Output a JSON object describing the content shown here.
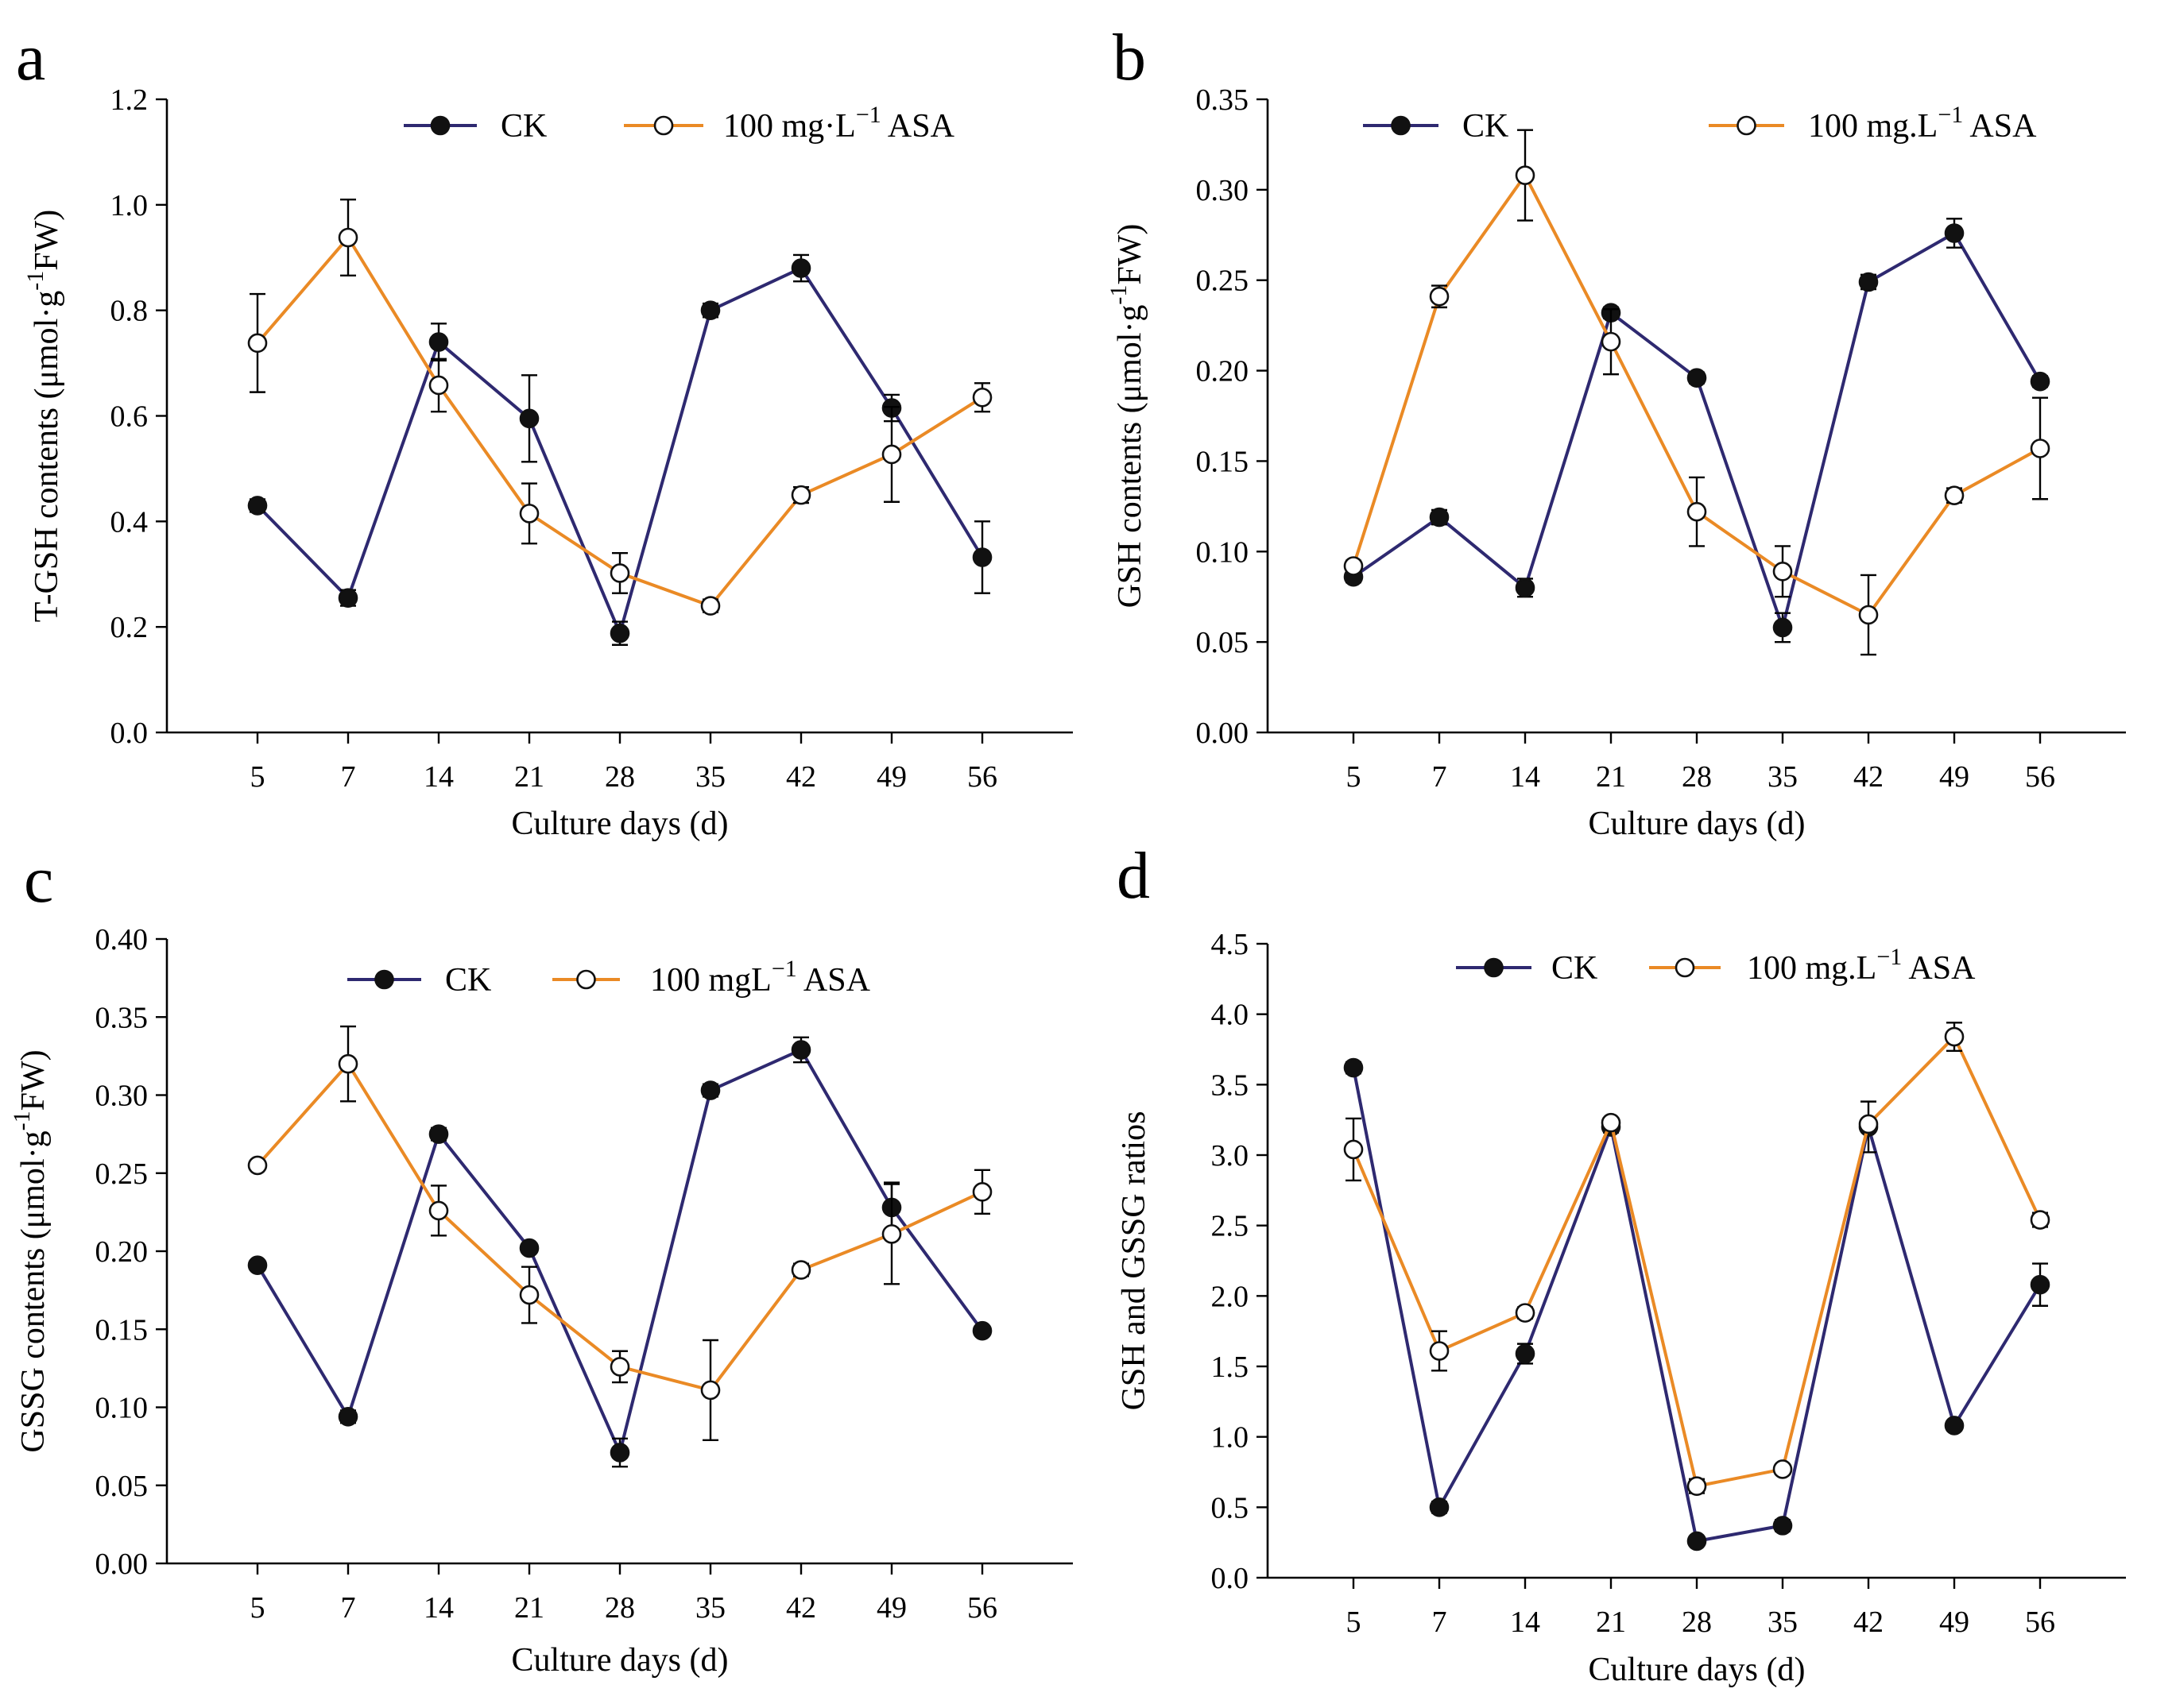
{
  "colors": {
    "ck_line": "#2e2970",
    "asa_line": "#ea8a25",
    "marker_fill_ck": "#111111",
    "marker_fill_asa": "#ffffff"
  },
  "chart_data": [
    {
      "panel": "a",
      "type": "line",
      "categories": [
        "5",
        "7",
        "14",
        "21",
        "28",
        "35",
        "42",
        "49",
        "56"
      ],
      "xlabel": "Culture days (d)",
      "ylabel_main": "T-GSH contents (μmol·g",
      "ylabel_sup": "-1",
      "ylabel_tail": "FW)",
      "ylim": [
        0,
        1.2
      ],
      "yticks": [
        "0.0",
        "0.2",
        "0.4",
        "0.6",
        "0.8",
        "1.0",
        "1.2"
      ],
      "legend": {
        "ck": "CK",
        "asa_main": "100 mg·L",
        "asa_sup": "−1",
        "asa_tail": " ASA"
      },
      "series": [
        {
          "name": "CK",
          "values": [
            0.43,
            0.255,
            0.74,
            0.595,
            0.188,
            0.8,
            0.88,
            0.615,
            0.332
          ],
          "errors": [
            0.012,
            0.015,
            0.035,
            0.082,
            0.022,
            0.013,
            0.025,
            0.025,
            0.068
          ]
        },
        {
          "name": "100 mg·L−1 ASA",
          "values": [
            0.738,
            0.938,
            0.658,
            0.415,
            0.302,
            0.24,
            0.45,
            0.527,
            0.635
          ],
          "errors": [
            0.093,
            0.072,
            0.05,
            0.057,
            0.038,
            0.012,
            0.015,
            0.09,
            0.027
          ]
        }
      ]
    },
    {
      "panel": "b",
      "type": "line",
      "categories": [
        "5",
        "7",
        "14",
        "21",
        "28",
        "35",
        "42",
        "49",
        "56"
      ],
      "xlabel": "Culture days (d)",
      "ylabel_main": "GSH contents (μmol·g",
      "ylabel_sup": "-1",
      "ylabel_tail": "FW)",
      "ylim": [
        0,
        0.35
      ],
      "yticks": [
        "0.00",
        "0.05",
        "0.10",
        "0.15",
        "0.20",
        "0.25",
        "0.30",
        "0.35"
      ],
      "legend": {
        "ck": "CK",
        "asa_main": "100 mg.L",
        "asa_sup": "−1",
        "asa_tail": " ASA"
      },
      "series": [
        {
          "name": "CK",
          "values": [
            0.086,
            0.119,
            0.08,
            0.232,
            0.196,
            0.058,
            0.249,
            0.276,
            0.194
          ],
          "errors": [
            0.003,
            0.004,
            0.005,
            0.003,
            0.003,
            0.008,
            0.004,
            0.008,
            0.003
          ]
        },
        {
          "name": "100 mg.L−1 ASA",
          "values": [
            0.092,
            0.241,
            0.308,
            0.216,
            0.122,
            0.089,
            0.065,
            0.131,
            0.157
          ],
          "errors": [
            0.003,
            0.006,
            0.025,
            0.018,
            0.019,
            0.014,
            0.022,
            0.004,
            0.028
          ]
        }
      ]
    },
    {
      "panel": "c",
      "type": "line",
      "categories": [
        "5",
        "7",
        "14",
        "21",
        "28",
        "35",
        "42",
        "49",
        "56"
      ],
      "xlabel": "Culture days (d)",
      "ylabel_main": "GSSG contents (μmol·g",
      "ylabel_sup": "-1",
      "ylabel_tail": "FW)",
      "ylim": [
        0,
        0.4
      ],
      "yticks": [
        "0.00",
        "0.05",
        "0.10",
        "0.15",
        "0.20",
        "0.25",
        "0.30",
        "0.35",
        "0.40"
      ],
      "legend": {
        "ck": "CK",
        "asa_main": "100 mgL",
        "asa_sup": "−1",
        "asa_tail": " ASA"
      },
      "series": [
        {
          "name": "CK",
          "values": [
            0.191,
            0.094,
            0.275,
            0.202,
            0.071,
            0.303,
            0.329,
            0.228,
            0.149
          ],
          "errors": [
            0.003,
            0.004,
            0.004,
            0.003,
            0.009,
            0.004,
            0.008,
            0.016,
            0.003
          ]
        },
        {
          "name": "100 mgL−1 ASA",
          "values": [
            0.255,
            0.32,
            0.226,
            0.172,
            0.126,
            0.111,
            0.188,
            0.211,
            0.238
          ],
          "errors": [
            0.003,
            0.024,
            0.016,
            0.018,
            0.01,
            0.032,
            0.004,
            0.032,
            0.014
          ]
        }
      ]
    },
    {
      "panel": "d",
      "type": "line",
      "categories": [
        "5",
        "7",
        "14",
        "21",
        "28",
        "35",
        "42",
        "49",
        "56"
      ],
      "xlabel": "Culture days (d)",
      "ylabel_main": "GSH and GSSG ratios",
      "ylabel_sup": "",
      "ylabel_tail": "",
      "ylim": [
        0,
        4.5
      ],
      "yticks": [
        "0.0",
        "0.5",
        "1.0",
        "1.5",
        "2.0",
        "2.5",
        "3.0",
        "3.5",
        "4.0",
        "4.5"
      ],
      "legend": {
        "ck": "CK",
        "asa_main": "100 mg.L",
        "asa_sup": "−1",
        "asa_tail": " ASA"
      },
      "series": [
        {
          "name": "CK",
          "values": [
            3.62,
            0.5,
            1.59,
            3.2,
            0.26,
            0.37,
            3.2,
            1.08,
            2.08
          ],
          "errors": [
            0.04,
            0.04,
            0.07,
            0.04,
            0.02,
            0.04,
            0.18,
            0.03,
            0.15
          ]
        },
        {
          "name": "100 mg.L−1 ASA",
          "values": [
            3.04,
            1.61,
            1.88,
            3.23,
            0.65,
            0.77,
            3.22,
            3.84,
            2.54
          ],
          "errors": [
            0.22,
            0.14,
            0.04,
            0.03,
            0.05,
            0.03,
            0.03,
            0.1,
            0.05
          ]
        }
      ]
    }
  ]
}
